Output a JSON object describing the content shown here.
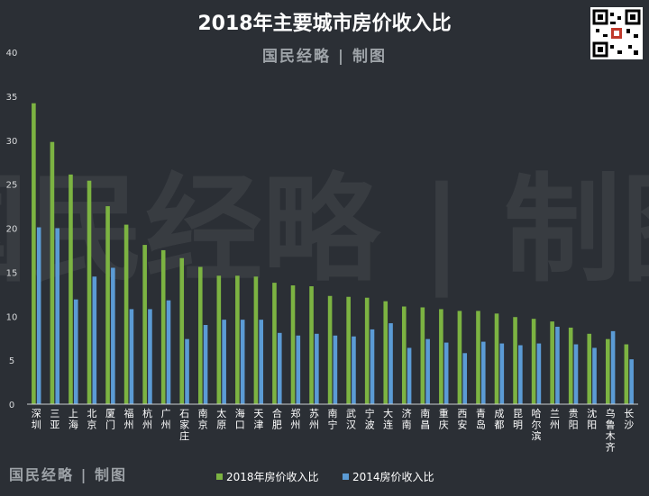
{
  "title": "2018年主要城市房价收入比",
  "brand": "国民经略 | 制图",
  "colors": {
    "s2018": "#7cb342",
    "s2014": "#5b9bd5"
  },
  "chart_data": {
    "type": "bar",
    "title": "2018年主要城市房价收入比",
    "ylim": [
      0,
      40
    ],
    "yticks": [
      0,
      5,
      10,
      15,
      20,
      25,
      30,
      35,
      40
    ],
    "grid": false,
    "legend": "bottom",
    "categories": [
      "深圳",
      "三亚",
      "上海",
      "北京",
      "厦门",
      "福州",
      "杭州",
      "广州",
      "石家庄",
      "南京",
      "太原",
      "海口",
      "天津",
      "合肥",
      "郑州",
      "苏州",
      "南宁",
      "武汉",
      "宁波",
      "大连",
      "济南",
      "南昌",
      "重庆",
      "西安",
      "青岛",
      "成都",
      "昆明",
      "哈尔滨",
      "兰州",
      "贵阳",
      "沈阳",
      "乌鲁木齐",
      "长沙"
    ],
    "series": [
      {
        "name": "2018年房价收入比",
        "values": [
          34.2,
          29.8,
          26.1,
          25.4,
          22.5,
          20.4,
          18.1,
          17.5,
          16.6,
          15.6,
          14.6,
          14.6,
          14.5,
          13.8,
          13.5,
          13.4,
          12.3,
          12.2,
          12.1,
          11.7,
          11.1,
          11.0,
          10.8,
          10.6,
          10.6,
          10.3,
          9.9,
          9.7,
          9.4,
          8.7,
          8.0,
          7.4,
          6.8
        ]
      },
      {
        "name": "2014房价收入比",
        "values": [
          20.1,
          20.0,
          11.9,
          14.5,
          15.5,
          10.8,
          10.8,
          11.8,
          7.4,
          9.0,
          9.6,
          9.6,
          9.6,
          8.1,
          7.8,
          8.0,
          7.8,
          7.7,
          8.5,
          9.2,
          6.4,
          7.4,
          7.0,
          5.8,
          7.1,
          6.9,
          6.7,
          6.9,
          8.8,
          6.8,
          6.4,
          8.3,
          5.1
        ]
      }
    ]
  }
}
